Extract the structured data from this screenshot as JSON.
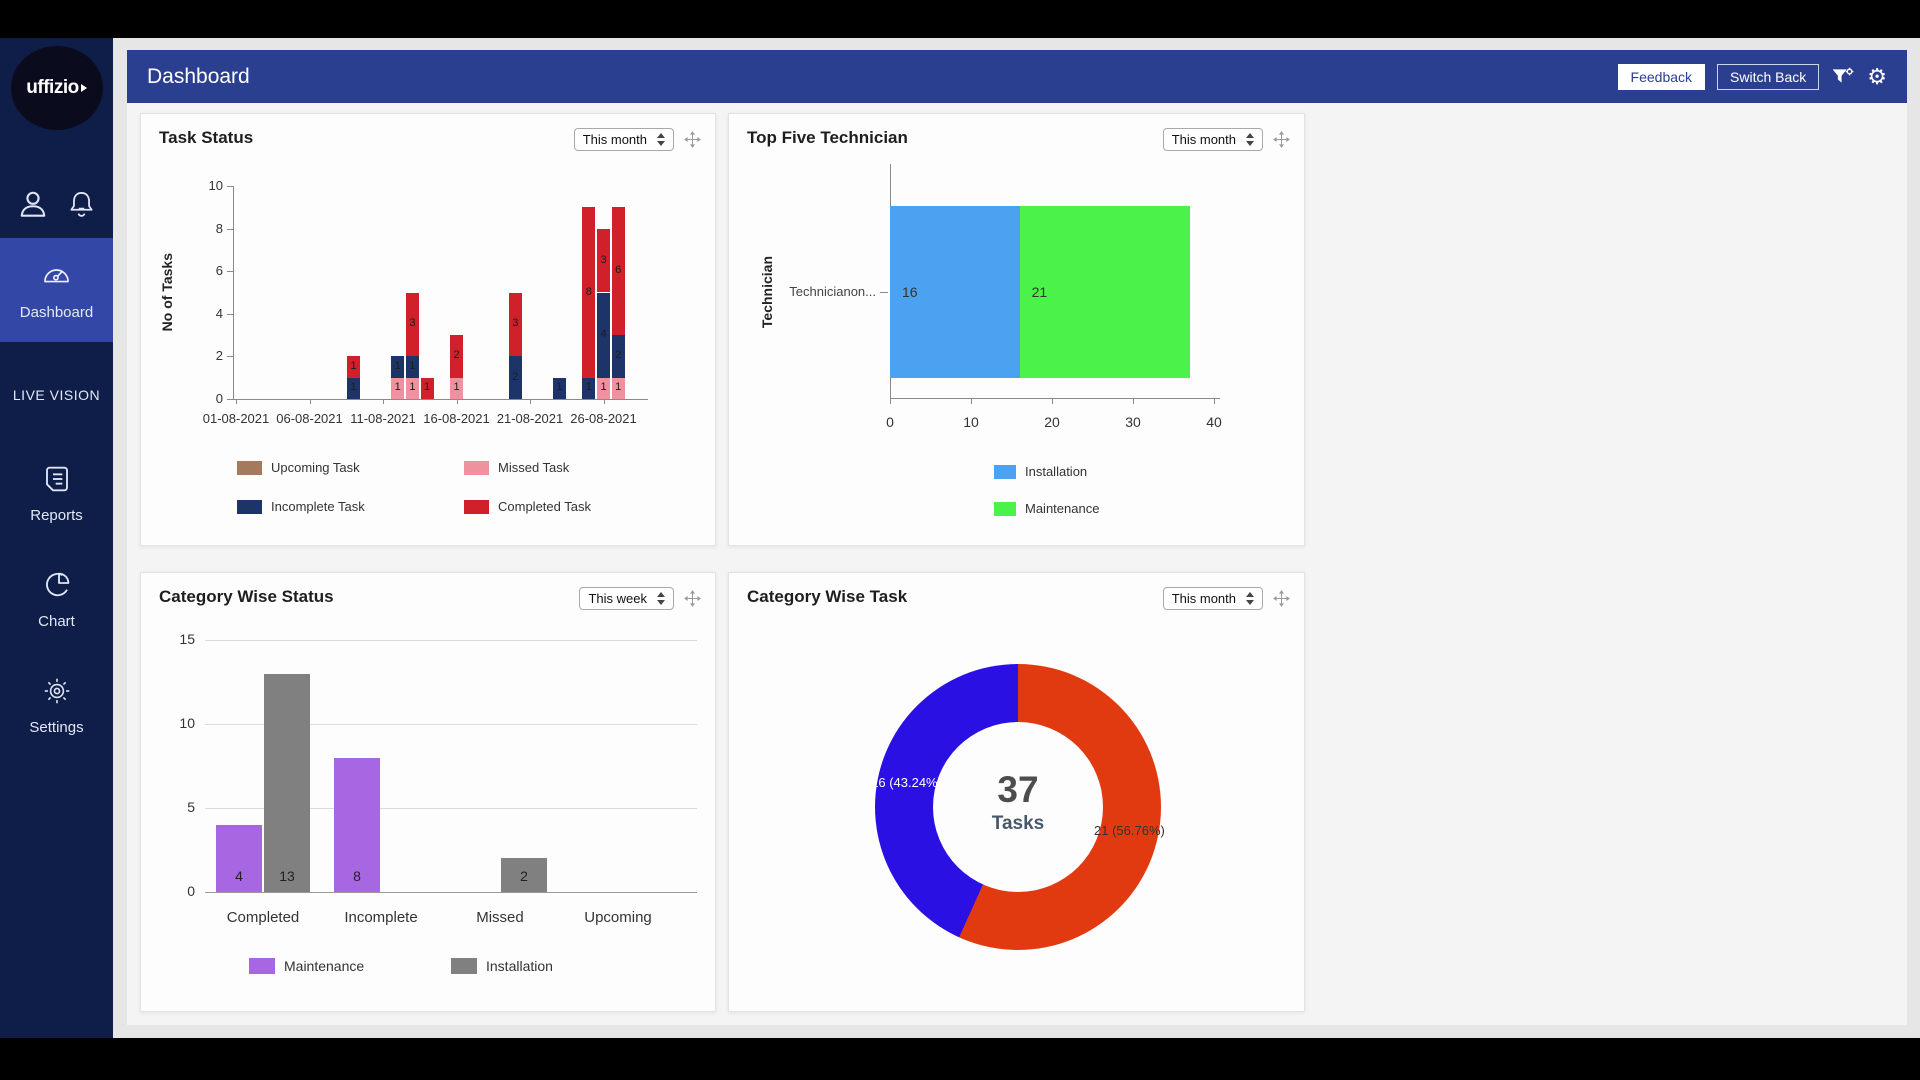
{
  "header": {
    "title": "Dashboard",
    "feedback_label": "Feedback",
    "switch_back_label": "Switch Back"
  },
  "icons": {
    "settings_gear": "⚙"
  },
  "colors": {
    "header_blue": "#2a3f90",
    "sidebar_navy": "#0f1d49",
    "sidebar_active": "#3348a6"
  },
  "sidebar": {
    "logo_text": "uffizio",
    "items": [
      {
        "label": "Dashboard",
        "active": true
      },
      {
        "label": "LIVE VISION",
        "active": false
      },
      {
        "label": "Reports",
        "active": false
      },
      {
        "label": "Chart",
        "active": false
      },
      {
        "label": "Settings",
        "active": false
      }
    ]
  },
  "cards": [
    {
      "title": "Task Status",
      "range": "This month"
    },
    {
      "title": "Top Five Technician",
      "range": "This month"
    },
    {
      "title": "Category Wise Status",
      "range": "This week"
    },
    {
      "title": "Category Wise Task",
      "range": "This month"
    }
  ],
  "chart_data": [
    {
      "panel": "Task Status",
      "type": "bar",
      "stacked": true,
      "ylabel": "No of Tasks",
      "ylim": [
        0,
        10
      ],
      "yticks": [
        0,
        2,
        4,
        6,
        8,
        10
      ],
      "xticks": [
        "01-08-2021",
        "06-08-2021",
        "11-08-2021",
        "16-08-2021",
        "21-08-2021",
        "26-08-2021"
      ],
      "xtick_days": [
        1,
        6,
        11,
        16,
        21,
        26
      ],
      "legend": [
        {
          "key": "upcoming",
          "label": "Upcoming Task",
          "color": "#a5795d"
        },
        {
          "key": "missed",
          "label": "Missed Task",
          "color": "#f0919f"
        },
        {
          "key": "incomplete",
          "label": "Incomplete Task",
          "color": "#1d3468"
        },
        {
          "key": "completed",
          "label": "Completed Task",
          "color": "#d02029"
        }
      ],
      "stack_order": [
        "missed",
        "incomplete",
        "completed"
      ],
      "bars": [
        {
          "date": "09-08-2021",
          "day": 9,
          "missed": 0,
          "incomplete": 1,
          "completed": 1
        },
        {
          "date": "12-08-2021",
          "day": 12,
          "missed": 1,
          "incomplete": 1,
          "completed": 0
        },
        {
          "date": "13-08-2021",
          "day": 13,
          "missed": 1,
          "incomplete": 1,
          "completed": 3
        },
        {
          "date": "14-08-2021",
          "day": 14,
          "missed": 0,
          "incomplete": 0,
          "completed": 1
        },
        {
          "date": "16-08-2021",
          "day": 16,
          "missed": 1,
          "incomplete": 0,
          "completed": 2
        },
        {
          "date": "20-08-2021",
          "day": 20,
          "missed": 0,
          "incomplete": 2,
          "completed": 3
        },
        {
          "date": "23-08-2021",
          "day": 23,
          "missed": 0,
          "incomplete": 1,
          "completed": 0
        },
        {
          "date": "25-08-2021",
          "day": 25,
          "missed": 0,
          "incomplete": 1,
          "completed": 8
        },
        {
          "date": "26-08-2021",
          "day": 26,
          "missed": 1,
          "incomplete": 4,
          "completed": 3
        },
        {
          "date": "27-08-2021",
          "day": 27,
          "missed": 1,
          "incomplete": 2,
          "completed": 6
        }
      ]
    },
    {
      "panel": "Top Five Technician",
      "type": "bar",
      "orientation": "horizontal",
      "stacked": true,
      "ylabel": "Technician",
      "categories": [
        "Technicianon..."
      ],
      "xlim": [
        0,
        40
      ],
      "xticks": [
        0,
        10,
        20,
        30,
        40
      ],
      "series": [
        {
          "name": "Installation",
          "color": "#4ba2f0",
          "values": [
            16
          ]
        },
        {
          "name": "Maintenance",
          "color": "#4af24a",
          "values": [
            21
          ]
        }
      ],
      "legend": [
        {
          "label": "Installation",
          "color": "#4ba2f0"
        },
        {
          "label": "Maintenance",
          "color": "#4af24a"
        }
      ]
    },
    {
      "panel": "Category Wise Status",
      "type": "bar",
      "grouped": true,
      "grid": true,
      "categories": [
        "Completed",
        "Incomplete",
        "Missed",
        "Upcoming"
      ],
      "ylim": [
        0,
        15
      ],
      "yticks": [
        0,
        5,
        10,
        15
      ],
      "series": [
        {
          "name": "Maintenance",
          "color": "#a767e3",
          "values": [
            4,
            8,
            0,
            0
          ]
        },
        {
          "name": "Installation",
          "color": "#808080",
          "values": [
            13,
            0,
            2,
            0
          ]
        }
      ],
      "legend": [
        {
          "label": "Maintenance",
          "color": "#a767e3"
        },
        {
          "label": "Installation",
          "color": "#808080"
        }
      ]
    },
    {
      "panel": "Category Wise Task",
      "type": "donut",
      "center_value": "37",
      "center_label": "Tasks",
      "start_angle_deg": 0,
      "direction": "clockwise",
      "slices": [
        {
          "label": "21 (56.76%)",
          "value": 21,
          "pct": 56.76,
          "color": "#e13a10",
          "label_color": "#333333"
        },
        {
          "label": "16 (43.24%)",
          "value": 16,
          "pct": 43.24,
          "color": "#2a10e3",
          "label_color": "#ffffff"
        }
      ]
    }
  ]
}
